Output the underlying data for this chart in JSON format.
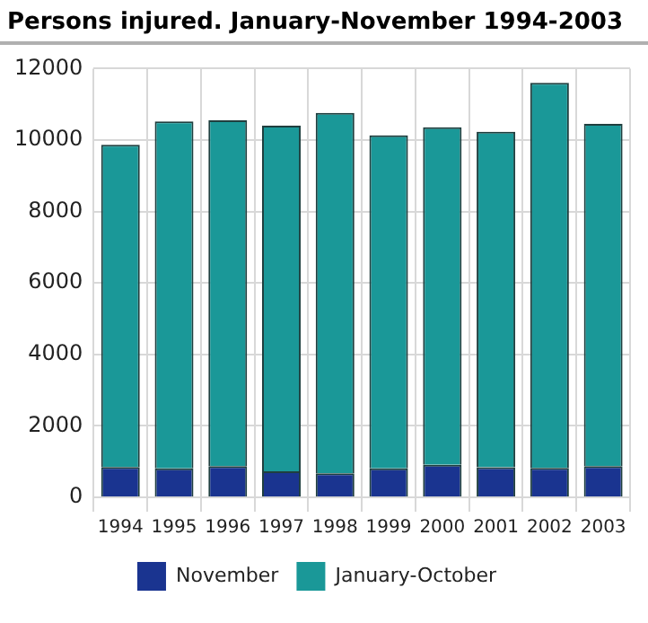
{
  "chart_data": {
    "type": "bar",
    "title": "Persons injured. January-November 1994-2003",
    "categories": [
      "1994",
      "1995",
      "1996",
      "1997",
      "1998",
      "1999",
      "2000",
      "2001",
      "2002",
      "2003"
    ],
    "stacked": true,
    "series": [
      {
        "name": "November",
        "color": "#1a3490",
        "values": [
          850,
          810,
          870,
          730,
          670,
          810,
          910,
          840,
          820,
          870
        ]
      },
      {
        "name": "January-October",
        "color": "#1a9898",
        "values": [
          9020,
          9710,
          9680,
          9670,
          10090,
          9320,
          9450,
          9390,
          10780,
          9580
        ]
      }
    ],
    "ylim": [
      0,
      12000
    ],
    "yticks": [
      0,
      2000,
      4000,
      6000,
      8000,
      10000,
      12000
    ],
    "grid": true,
    "legend": "bottom"
  }
}
